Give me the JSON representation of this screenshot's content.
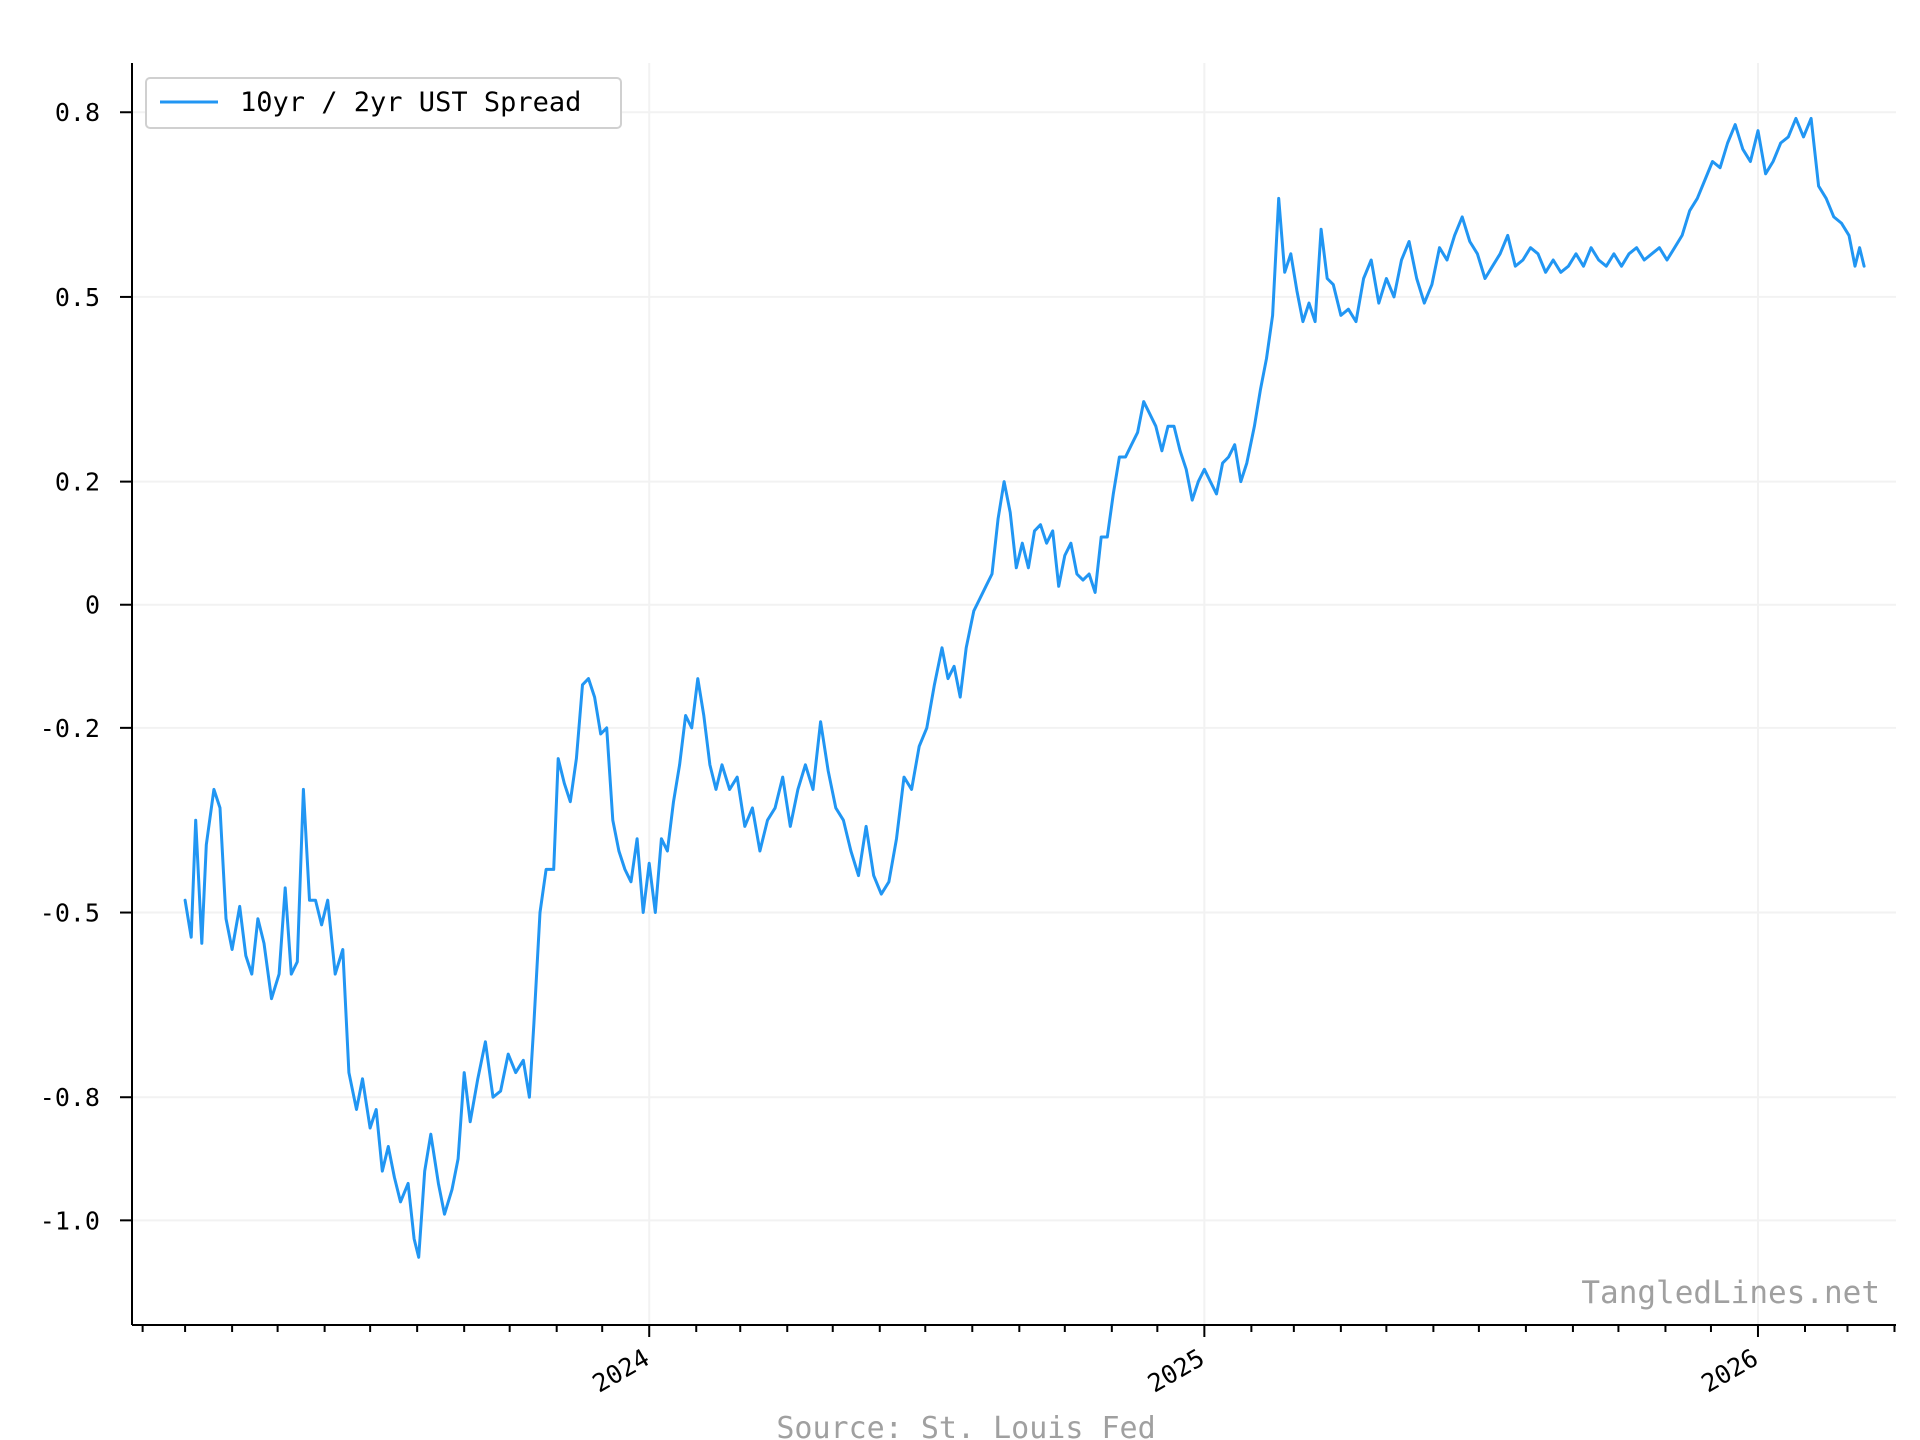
{
  "chart_data": {
    "type": "line",
    "title": "",
    "xlabel": "",
    "ylabel": "",
    "x_ticks": [
      "2024",
      "2025",
      "2026"
    ],
    "y_ticks": [
      {
        "value": 0.8,
        "label": "0.8"
      },
      {
        "value": 0.5,
        "label": "0.5"
      },
      {
        "value": 0.2,
        "label": "0.2"
      },
      {
        "value": 0,
        "label": "0"
      },
      {
        "value": -0.2,
        "label": "-0.2"
      },
      {
        "value": -0.5,
        "label": "-0.5"
      },
      {
        "value": -0.8,
        "label": "-0.8"
      },
      {
        "value": -1.0,
        "label": "-1.0"
      }
    ],
    "xlim": [
      "2023-01-25",
      "2026-04-02"
    ],
    "ylim": [
      -1.17,
      0.88
    ],
    "grid": true,
    "legend_position": "top-left",
    "series": [
      {
        "name": "10yr / 2yr UST Spread",
        "color": "#2196f3",
        "points": [
          [
            "2023-03-01",
            -0.48
          ],
          [
            "2023-03-05",
            -0.54
          ],
          [
            "2023-03-08",
            -0.35
          ],
          [
            "2023-03-12",
            -0.55
          ],
          [
            "2023-03-15",
            -0.39
          ],
          [
            "2023-03-20",
            -0.3
          ],
          [
            "2023-03-24",
            -0.33
          ],
          [
            "2023-03-28",
            -0.51
          ],
          [
            "2023-04-01",
            -0.56
          ],
          [
            "2023-04-06",
            -0.49
          ],
          [
            "2023-04-10",
            -0.57
          ],
          [
            "2023-04-14",
            -0.6
          ],
          [
            "2023-04-18",
            -0.51
          ],
          [
            "2023-04-22",
            -0.55
          ],
          [
            "2023-04-27",
            -0.64
          ],
          [
            "2023-05-02",
            -0.6
          ],
          [
            "2023-05-06",
            -0.46
          ],
          [
            "2023-05-10",
            -0.6
          ],
          [
            "2023-05-14",
            -0.58
          ],
          [
            "2023-05-18",
            -0.3
          ],
          [
            "2023-05-22",
            -0.48
          ],
          [
            "2023-05-26",
            -0.48
          ],
          [
            "2023-05-30",
            -0.52
          ],
          [
            "2023-06-03",
            -0.48
          ],
          [
            "2023-06-08",
            -0.6
          ],
          [
            "2023-06-13",
            -0.56
          ],
          [
            "2023-06-17",
            -0.76
          ],
          [
            "2023-06-22",
            -0.82
          ],
          [
            "2023-06-26",
            -0.77
          ],
          [
            "2023-07-01",
            -0.85
          ],
          [
            "2023-07-05",
            -0.82
          ],
          [
            "2023-07-09",
            -0.92
          ],
          [
            "2023-07-13",
            -0.88
          ],
          [
            "2023-07-17",
            -0.93
          ],
          [
            "2023-07-21",
            -0.97
          ],
          [
            "2023-07-26",
            -0.94
          ],
          [
            "2023-07-30",
            -1.03
          ],
          [
            "2023-08-02",
            -1.06
          ],
          [
            "2023-08-06",
            -0.92
          ],
          [
            "2023-08-10",
            -0.86
          ],
          [
            "2023-08-15",
            -0.94
          ],
          [
            "2023-08-19",
            -0.99
          ],
          [
            "2023-08-24",
            -0.95
          ],
          [
            "2023-08-28",
            -0.9
          ],
          [
            "2023-09-01",
            -0.76
          ],
          [
            "2023-09-05",
            -0.84
          ],
          [
            "2023-09-10",
            -0.77
          ],
          [
            "2023-09-15",
            -0.71
          ],
          [
            "2023-09-20",
            -0.8
          ],
          [
            "2023-09-25",
            -0.79
          ],
          [
            "2023-09-30",
            -0.73
          ],
          [
            "2023-10-05",
            -0.76
          ],
          [
            "2023-10-10",
            -0.74
          ],
          [
            "2023-10-14",
            -0.8
          ],
          [
            "2023-10-17",
            -0.68
          ],
          [
            "2023-10-21",
            -0.5
          ],
          [
            "2023-10-25",
            -0.43
          ],
          [
            "2023-10-30",
            -0.43
          ],
          [
            "2023-11-02",
            -0.25
          ],
          [
            "2023-11-06",
            -0.29
          ],
          [
            "2023-11-10",
            -0.32
          ],
          [
            "2023-11-14",
            -0.25
          ],
          [
            "2023-11-18",
            -0.13
          ],
          [
            "2023-11-22",
            -0.12
          ],
          [
            "2023-11-26",
            -0.15
          ],
          [
            "2023-11-30",
            -0.21
          ],
          [
            "2023-12-04",
            -0.2
          ],
          [
            "2023-12-08",
            -0.35
          ],
          [
            "2023-12-12",
            -0.4
          ],
          [
            "2023-12-16",
            -0.43
          ],
          [
            "2023-12-20",
            -0.45
          ],
          [
            "2023-12-24",
            -0.38
          ],
          [
            "2023-12-28",
            -0.5
          ],
          [
            "2024-01-01",
            -0.42
          ],
          [
            "2024-01-05",
            -0.5
          ],
          [
            "2024-01-09",
            -0.38
          ],
          [
            "2024-01-13",
            -0.4
          ],
          [
            "2024-01-17",
            -0.32
          ],
          [
            "2024-01-21",
            -0.26
          ],
          [
            "2024-01-25",
            -0.18
          ],
          [
            "2024-01-29",
            -0.2
          ],
          [
            "2024-02-02",
            -0.12
          ],
          [
            "2024-02-06",
            -0.18
          ],
          [
            "2024-02-10",
            -0.26
          ],
          [
            "2024-02-14",
            -0.3
          ],
          [
            "2024-02-18",
            -0.26
          ],
          [
            "2024-02-23",
            -0.3
          ],
          [
            "2024-02-28",
            -0.28
          ],
          [
            "2024-03-04",
            -0.36
          ],
          [
            "2024-03-09",
            -0.33
          ],
          [
            "2024-03-14",
            -0.4
          ],
          [
            "2024-03-19",
            -0.35
          ],
          [
            "2024-03-24",
            -0.33
          ],
          [
            "2024-03-29",
            -0.28
          ],
          [
            "2024-04-03",
            -0.36
          ],
          [
            "2024-04-08",
            -0.3
          ],
          [
            "2024-04-13",
            -0.26
          ],
          [
            "2024-04-18",
            -0.3
          ],
          [
            "2024-04-23",
            -0.19
          ],
          [
            "2024-04-28",
            -0.27
          ],
          [
            "2024-05-03",
            -0.33
          ],
          [
            "2024-05-08",
            -0.35
          ],
          [
            "2024-05-13",
            -0.4
          ],
          [
            "2024-05-18",
            -0.44
          ],
          [
            "2024-05-23",
            -0.36
          ],
          [
            "2024-05-28",
            -0.44
          ],
          [
            "2024-06-02",
            -0.47
          ],
          [
            "2024-06-07",
            -0.45
          ],
          [
            "2024-06-12",
            -0.38
          ],
          [
            "2024-06-17",
            -0.28
          ],
          [
            "2024-06-22",
            -0.3
          ],
          [
            "2024-06-27",
            -0.23
          ],
          [
            "2024-07-02",
            -0.2
          ],
          [
            "2024-07-07",
            -0.13
          ],
          [
            "2024-07-12",
            -0.07
          ],
          [
            "2024-07-16",
            -0.12
          ],
          [
            "2024-07-20",
            -0.1
          ],
          [
            "2024-07-24",
            -0.15
          ],
          [
            "2024-07-28",
            -0.07
          ],
          [
            "2024-08-02",
            -0.01
          ],
          [
            "2024-08-06",
            0.01
          ],
          [
            "2024-08-10",
            0.03
          ],
          [
            "2024-08-14",
            0.05
          ],
          [
            "2024-08-18",
            0.14
          ],
          [
            "2024-08-22",
            0.2
          ],
          [
            "2024-08-26",
            0.15
          ],
          [
            "2024-08-30",
            0.06
          ],
          [
            "2024-09-03",
            0.1
          ],
          [
            "2024-09-07",
            0.06
          ],
          [
            "2024-09-11",
            0.12
          ],
          [
            "2024-09-15",
            0.13
          ],
          [
            "2024-09-19",
            0.1
          ],
          [
            "2024-09-23",
            0.12
          ],
          [
            "2024-09-27",
            0.03
          ],
          [
            "2024-10-01",
            0.08
          ],
          [
            "2024-10-05",
            0.1
          ],
          [
            "2024-10-09",
            0.05
          ],
          [
            "2024-10-13",
            0.04
          ],
          [
            "2024-10-17",
            0.05
          ],
          [
            "2024-10-21",
            0.02
          ],
          [
            "2024-10-25",
            0.11
          ],
          [
            "2024-10-29",
            0.11
          ],
          [
            "2024-11-02",
            0.18
          ],
          [
            "2024-11-06",
            0.24
          ],
          [
            "2024-11-10",
            0.24
          ],
          [
            "2024-11-14",
            0.26
          ],
          [
            "2024-11-18",
            0.28
          ],
          [
            "2024-11-22",
            0.33
          ],
          [
            "2024-11-26",
            0.31
          ],
          [
            "2024-11-30",
            0.29
          ],
          [
            "2024-12-04",
            0.25
          ],
          [
            "2024-12-08",
            0.29
          ],
          [
            "2024-12-12",
            0.29
          ],
          [
            "2024-12-16",
            0.25
          ],
          [
            "2024-12-20",
            0.22
          ],
          [
            "2024-12-24",
            0.17
          ],
          [
            "2024-12-28",
            0.2
          ],
          [
            "2025-01-01",
            0.22
          ],
          [
            "2025-01-05",
            0.2
          ],
          [
            "2025-01-09",
            0.18
          ],
          [
            "2025-01-13",
            0.23
          ],
          [
            "2025-01-17",
            0.24
          ],
          [
            "2025-01-21",
            0.26
          ],
          [
            "2025-01-25",
            0.2
          ],
          [
            "2025-01-29",
            0.23
          ],
          [
            "2025-02-03",
            0.29
          ],
          [
            "2025-02-07",
            0.35
          ],
          [
            "2025-02-11",
            0.4
          ],
          [
            "2025-02-15",
            0.47
          ],
          [
            "2025-02-19",
            0.66
          ],
          [
            "2025-02-23",
            0.54
          ],
          [
            "2025-02-27",
            0.57
          ],
          [
            "2025-03-03",
            0.51
          ],
          [
            "2025-03-07",
            0.46
          ],
          [
            "2025-03-11",
            0.49
          ],
          [
            "2025-03-15",
            0.46
          ],
          [
            "2025-03-19",
            0.61
          ],
          [
            "2025-03-23",
            0.53
          ],
          [
            "2025-03-27",
            0.52
          ],
          [
            "2025-04-01",
            0.47
          ],
          [
            "2025-04-06",
            0.48
          ],
          [
            "2025-04-11",
            0.46
          ],
          [
            "2025-04-16",
            0.53
          ],
          [
            "2025-04-21",
            0.56
          ],
          [
            "2025-04-26",
            0.49
          ],
          [
            "2025-05-01",
            0.53
          ],
          [
            "2025-05-06",
            0.5
          ],
          [
            "2025-05-11",
            0.56
          ],
          [
            "2025-05-16",
            0.59
          ],
          [
            "2025-05-21",
            0.53
          ],
          [
            "2025-05-26",
            0.49
          ],
          [
            "2025-05-31",
            0.52
          ],
          [
            "2025-06-05",
            0.58
          ],
          [
            "2025-06-10",
            0.56
          ],
          [
            "2025-06-15",
            0.6
          ],
          [
            "2025-06-20",
            0.63
          ],
          [
            "2025-06-25",
            0.59
          ],
          [
            "2025-06-30",
            0.57
          ],
          [
            "2025-07-05",
            0.53
          ],
          [
            "2025-07-10",
            0.55
          ],
          [
            "2025-07-15",
            0.57
          ],
          [
            "2025-07-20",
            0.6
          ],
          [
            "2025-07-25",
            0.55
          ],
          [
            "2025-07-30",
            0.56
          ],
          [
            "2025-08-04",
            0.58
          ],
          [
            "2025-08-09",
            0.57
          ],
          [
            "2025-08-14",
            0.54
          ],
          [
            "2025-08-19",
            0.56
          ],
          [
            "2025-08-24",
            0.54
          ],
          [
            "2025-08-29",
            0.55
          ],
          [
            "2025-09-03",
            0.57
          ],
          [
            "2025-09-08",
            0.55
          ],
          [
            "2025-09-13",
            0.58
          ],
          [
            "2025-09-18",
            0.56
          ],
          [
            "2025-09-23",
            0.55
          ],
          [
            "2025-09-28",
            0.57
          ],
          [
            "2025-10-03",
            0.55
          ],
          [
            "2025-10-08",
            0.57
          ],
          [
            "2025-10-13",
            0.58
          ],
          [
            "2025-10-18",
            0.56
          ],
          [
            "2025-10-23",
            0.57
          ],
          [
            "2025-10-28",
            0.58
          ],
          [
            "2025-11-02",
            0.56
          ],
          [
            "2025-11-07",
            0.58
          ],
          [
            "2025-11-12",
            0.6
          ],
          [
            "2025-11-17",
            0.64
          ],
          [
            "2025-11-22",
            0.66
          ],
          [
            "2025-11-27",
            0.69
          ],
          [
            "2025-12-02",
            0.72
          ],
          [
            "2025-12-07",
            0.71
          ],
          [
            "2025-12-12",
            0.75
          ],
          [
            "2025-12-17",
            0.78
          ],
          [
            "2025-12-22",
            0.74
          ],
          [
            "2025-12-27",
            0.72
          ],
          [
            "2026-01-01",
            0.77
          ],
          [
            "2026-01-06",
            0.7
          ],
          [
            "2026-01-11",
            0.72
          ],
          [
            "2026-01-16",
            0.75
          ],
          [
            "2026-01-21",
            0.76
          ],
          [
            "2026-01-26",
            0.79
          ],
          [
            "2026-01-31",
            0.76
          ],
          [
            "2026-02-05",
            0.79
          ],
          [
            "2026-02-10",
            0.68
          ],
          [
            "2026-02-15",
            0.66
          ],
          [
            "2026-02-20",
            0.63
          ],
          [
            "2026-02-25",
            0.62
          ],
          [
            "2026-03-02",
            0.6
          ],
          [
            "2026-03-06",
            0.55
          ],
          [
            "2026-03-09",
            0.58
          ],
          [
            "2026-03-12",
            0.55
          ]
        ]
      }
    ],
    "annotations": {
      "watermark": "TangledLines.net",
      "source": "Source: St. Louis Fed"
    }
  }
}
